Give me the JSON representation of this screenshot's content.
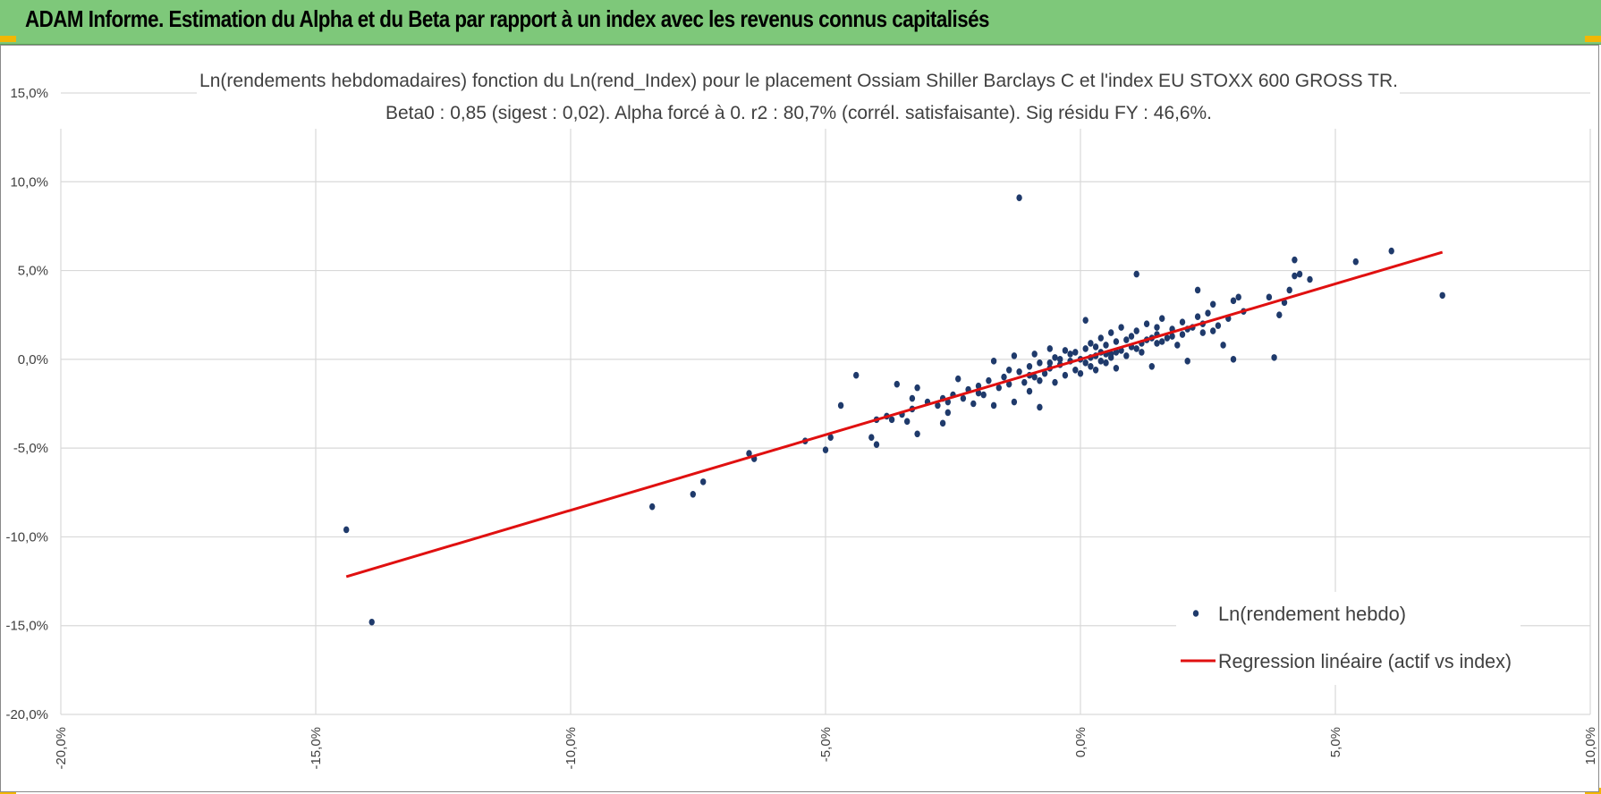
{
  "header": {
    "title": "ADAM Informe. Estimation du Alpha et du Beta par rapport à un index avec les revenus connus capitalisés"
  },
  "colors": {
    "header_bg": "#7ec87a",
    "points": "#1f3a6b",
    "regression": "#e01010",
    "grid": "#d9d9d9",
    "corner_accent": "#f2b705"
  },
  "chart_data": {
    "type": "scatter",
    "title_line1": "Ln(rendements hebdomadaires) fonction du Ln(rend_Index) pour le placement Ossiam Shiller Barclays C et l'index EU STOXX 600 GROSS TR.",
    "title_line2": "Beta0 : 0,85 (sigest : 0,02).  Alpha forcé à 0. r2 : 80,7% (corrél. satisfaisante). Sig résidu FY : 46,6%.",
    "xlabel": "",
    "ylabel": "",
    "xlim": [
      -20,
      10
    ],
    "ylim": [
      -20,
      15
    ],
    "x_ticks": [
      -20,
      -15,
      -10,
      -5,
      0,
      5,
      10
    ],
    "y_ticks": [
      -20,
      -15,
      -10,
      -5,
      0,
      5,
      10,
      15
    ],
    "x_tick_labels": [
      "-20,0%",
      "-15,0%",
      "-10,0%",
      "-5,0%",
      "0,0%",
      "5,0%",
      "10,0%"
    ],
    "y_tick_labels": [
      "-20,0%",
      "-15,0%",
      "-10,0%",
      "-5,0%",
      "0,0%",
      "5,0%",
      "10,0%",
      "15,0%"
    ],
    "grid": true,
    "legend_position": "bottom-right",
    "series": [
      {
        "name": "Ln(rendement hebdo)",
        "kind": "scatter",
        "points": [
          [
            -14.4,
            -9.6
          ],
          [
            -13.9,
            -14.8
          ],
          [
            -8.4,
            -8.3
          ],
          [
            -7.6,
            -7.6
          ],
          [
            -7.4,
            -6.9
          ],
          [
            -6.5,
            -5.3
          ],
          [
            -6.4,
            -5.6
          ],
          [
            -5.4,
            -4.6
          ],
          [
            -5.0,
            -5.1
          ],
          [
            -4.9,
            -4.4
          ],
          [
            -4.7,
            -2.6
          ],
          [
            -4.4,
            -0.9
          ],
          [
            -4.1,
            -4.4
          ],
          [
            -4.0,
            -4.8
          ],
          [
            -4.0,
            -3.4
          ],
          [
            -3.8,
            -3.2
          ],
          [
            -3.7,
            -3.4
          ],
          [
            -3.6,
            -1.4
          ],
          [
            -3.5,
            -3.1
          ],
          [
            -3.4,
            -3.5
          ],
          [
            -3.3,
            -2.8
          ],
          [
            -3.3,
            -2.2
          ],
          [
            -3.2,
            -4.2
          ],
          [
            -3.2,
            -1.6
          ],
          [
            -3.0,
            -2.4
          ],
          [
            -2.8,
            -2.6
          ],
          [
            -2.7,
            -2.2
          ],
          [
            -2.7,
            -3.6
          ],
          [
            -2.6,
            -3.0
          ],
          [
            -2.5,
            -2.0
          ],
          [
            -2.4,
            -1.1
          ],
          [
            -2.3,
            -2.2
          ],
          [
            -2.2,
            -1.7
          ],
          [
            -2.1,
            -2.5
          ],
          [
            -2.0,
            -1.5
          ],
          [
            -1.9,
            -2.0
          ],
          [
            -1.8,
            -1.2
          ],
          [
            -1.7,
            -2.6
          ],
          [
            -1.7,
            -0.1
          ],
          [
            -1.6,
            -1.6
          ],
          [
            -1.5,
            -1.0
          ],
          [
            -1.4,
            -1.4
          ],
          [
            -1.3,
            -2.4
          ],
          [
            -1.3,
            0.2
          ],
          [
            -1.2,
            -0.7
          ],
          [
            -1.2,
            9.1
          ],
          [
            -1.1,
            -1.3
          ],
          [
            -1.0,
            -0.4
          ],
          [
            -1.0,
            -1.8
          ],
          [
            -0.9,
            0.3
          ],
          [
            -0.9,
            -1.0
          ],
          [
            -0.8,
            -0.2
          ],
          [
            -0.8,
            -2.7
          ],
          [
            -0.7,
            -0.8
          ],
          [
            -0.6,
            0.6
          ],
          [
            -0.6,
            -0.5
          ],
          [
            -0.5,
            -1.3
          ],
          [
            -0.5,
            0.1
          ],
          [
            -0.4,
            -0.3
          ],
          [
            -0.3,
            -0.9
          ],
          [
            -0.3,
            0.5
          ],
          [
            -0.2,
            -0.1
          ],
          [
            -0.1,
            -0.6
          ],
          [
            -0.1,
            0.4
          ],
          [
            0.0,
            0.0
          ],
          [
            0.0,
            -0.8
          ],
          [
            0.1,
            0.6
          ],
          [
            0.1,
            2.2
          ],
          [
            0.2,
            -0.4
          ],
          [
            0.2,
            0.9
          ],
          [
            0.3,
            0.2
          ],
          [
            0.3,
            -0.6
          ],
          [
            0.4,
            1.2
          ],
          [
            0.4,
            0.4
          ],
          [
            0.5,
            -0.2
          ],
          [
            0.5,
            0.8
          ],
          [
            0.6,
            1.5
          ],
          [
            0.6,
            0.1
          ],
          [
            0.7,
            -0.5
          ],
          [
            0.7,
            1.0
          ],
          [
            0.8,
            0.5
          ],
          [
            0.8,
            1.8
          ],
          [
            0.9,
            0.2
          ],
          [
            1.0,
            1.3
          ],
          [
            1.0,
            0.7
          ],
          [
            1.1,
            4.8
          ],
          [
            1.1,
            1.6
          ],
          [
            1.2,
            0.4
          ],
          [
            1.3,
            1.1
          ],
          [
            1.3,
            2.0
          ],
          [
            1.4,
            -0.4
          ],
          [
            1.5,
            1.4
          ],
          [
            1.5,
            0.9
          ],
          [
            1.6,
            2.3
          ],
          [
            1.7,
            1.2
          ],
          [
            1.8,
            1.7
          ],
          [
            1.9,
            0.8
          ],
          [
            2.0,
            2.1
          ],
          [
            2.0,
            1.4
          ],
          [
            2.1,
            -0.1
          ],
          [
            2.2,
            1.8
          ],
          [
            2.3,
            3.9
          ],
          [
            2.3,
            2.4
          ],
          [
            2.4,
            1.5
          ],
          [
            2.5,
            2.6
          ],
          [
            2.6,
            3.1
          ],
          [
            2.7,
            1.9
          ],
          [
            2.8,
            0.8
          ],
          [
            2.9,
            2.3
          ],
          [
            3.0,
            3.3
          ],
          [
            3.0,
            -0.0
          ],
          [
            3.1,
            3.5
          ],
          [
            3.2,
            2.7
          ],
          [
            3.7,
            3.5
          ],
          [
            3.8,
            0.1
          ],
          [
            3.9,
            2.5
          ],
          [
            4.0,
            3.2
          ],
          [
            4.1,
            3.9
          ],
          [
            4.2,
            4.7
          ],
          [
            4.2,
            5.6
          ],
          [
            4.5,
            4.5
          ],
          [
            4.3,
            4.8
          ],
          [
            5.4,
            5.5
          ],
          [
            6.1,
            6.1
          ],
          [
            7.1,
            3.6
          ],
          [
            -0.2,
            0.3
          ],
          [
            0.1,
            -0.2
          ],
          [
            0.2,
            0.1
          ],
          [
            0.3,
            0.7
          ],
          [
            0.4,
            -0.1
          ],
          [
            -0.4,
            0.0
          ],
          [
            -0.6,
            -0.2
          ],
          [
            0.6,
            0.3
          ],
          [
            0.9,
            1.1
          ],
          [
            1.2,
            0.9
          ],
          [
            1.4,
            1.2
          ],
          [
            1.6,
            1.0
          ],
          [
            1.8,
            1.3
          ],
          [
            2.1,
            1.7
          ],
          [
            -1.0,
            -0.9
          ],
          [
            -1.4,
            -0.6
          ],
          [
            -2.0,
            -1.9
          ],
          [
            -2.6,
            -2.4
          ],
          [
            -0.8,
            -1.2
          ],
          [
            0.5,
            0.3
          ],
          [
            0.7,
            0.4
          ],
          [
            1.1,
            0.6
          ],
          [
            1.5,
            1.8
          ],
          [
            2.4,
            2.0
          ],
          [
            2.6,
            1.6
          ]
        ]
      },
      {
        "name": "Regression linéaire (actif vs index)",
        "kind": "line",
        "beta": 0.85,
        "alpha": 0,
        "x_range": [
          -14.4,
          7.1
        ]
      }
    ]
  }
}
